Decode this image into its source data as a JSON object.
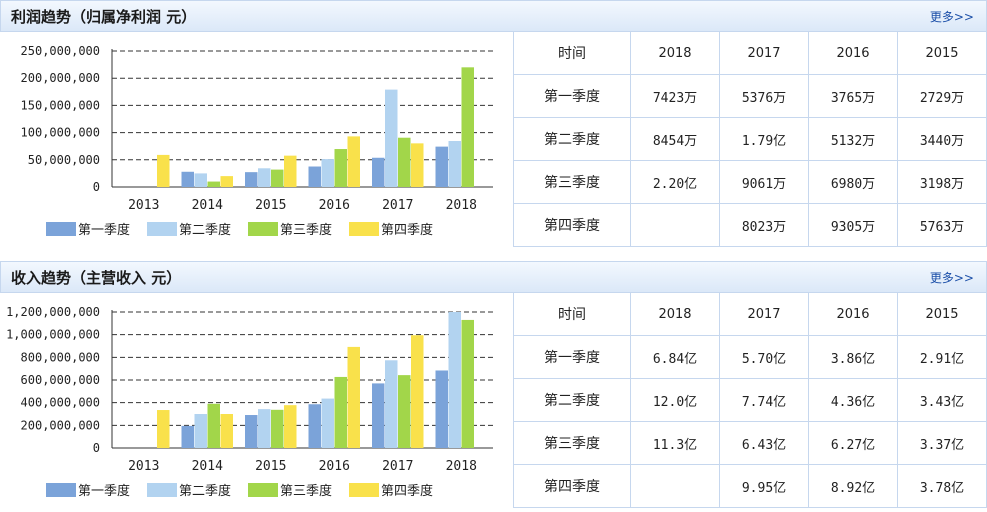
{
  "profit": {
    "title": "利润趋势（归属净利润 元）",
    "more_label": "更多>>",
    "table": {
      "header": [
        "时间",
        "2018",
        "2017",
        "2016",
        "2015"
      ],
      "rows": [
        [
          "第一季度",
          "7423万",
          "5376万",
          "3765万",
          "2729万"
        ],
        [
          "第二季度",
          "8454万",
          "1.79亿",
          "5132万",
          "3440万"
        ],
        [
          "第三季度",
          "2.20亿",
          "9061万",
          "6980万",
          "3198万"
        ],
        [
          "第四季度",
          "",
          "8023万",
          "9305万",
          "5763万"
        ]
      ]
    }
  },
  "revenue": {
    "title": "收入趋势（主营收入 元）",
    "more_label": "更多>>",
    "table": {
      "header": [
        "时间",
        "2018",
        "2017",
        "2016",
        "2015"
      ],
      "rows": [
        [
          "第一季度",
          "6.84亿",
          "5.70亿",
          "3.86亿",
          "2.91亿"
        ],
        [
          "第二季度",
          "12.0亿",
          "7.74亿",
          "4.36亿",
          "3.43亿"
        ],
        [
          "第三季度",
          "11.3亿",
          "6.43亿",
          "6.27亿",
          "3.37亿"
        ],
        [
          "第四季度",
          "",
          "9.95亿",
          "8.92亿",
          "3.78亿"
        ]
      ]
    }
  },
  "legend": [
    "第一季度",
    "第二季度",
    "第三季度",
    "第四季度"
  ],
  "colors": [
    "#7ba3d9",
    "#b2d3f0",
    "#a2d64a",
    "#f9e14b"
  ],
  "chart_data": [
    {
      "type": "bar",
      "categories": [
        "2013",
        "2014",
        "2015",
        "2016",
        "2017",
        "2018"
      ],
      "ylim": [
        0,
        250000000
      ],
      "yticks": [
        0,
        50000000,
        100000000,
        150000000,
        200000000,
        250000000
      ],
      "ytick_labels": [
        "0",
        "50,000,000",
        "100,000,000",
        "150,000,000",
        "200,000,000",
        "250,000,000"
      ],
      "grid": true,
      "legend": "bottom",
      "series": [
        {
          "name": "第一季度",
          "values": [
            null,
            28000000,
            27290000,
            37650000,
            53760000,
            74230000
          ]
        },
        {
          "name": "第二季度",
          "values": [
            null,
            25000000,
            34400000,
            51320000,
            179000000,
            84540000
          ]
        },
        {
          "name": "第三季度",
          "values": [
            null,
            10000000,
            31980000,
            69800000,
            90610000,
            220000000
          ]
        },
        {
          "name": "第四季度",
          "values": [
            59000000,
            20000000,
            57630000,
            93050000,
            80230000,
            null
          ]
        }
      ]
    },
    {
      "type": "bar",
      "categories": [
        "2013",
        "2014",
        "2015",
        "2016",
        "2017",
        "2018"
      ],
      "ylim": [
        0,
        1200000000
      ],
      "yticks": [
        0,
        200000000,
        400000000,
        600000000,
        800000000,
        1000000000,
        1200000000
      ],
      "ytick_labels": [
        "0",
        "200,000,000",
        "400,000,000",
        "600,000,000",
        "800,000,000",
        "1,000,000,000",
        "1,200,000,000"
      ],
      "grid": true,
      "legend": "bottom",
      "series": [
        {
          "name": "第一季度",
          "values": [
            null,
            195000000,
            291000000,
            386000000,
            570000000,
            684000000
          ]
        },
        {
          "name": "第二季度",
          "values": [
            null,
            300000000,
            343000000,
            436000000,
            774000000,
            1200000000
          ]
        },
        {
          "name": "第三季度",
          "values": [
            null,
            390000000,
            337000000,
            627000000,
            643000000,
            1130000000
          ]
        },
        {
          "name": "第四季度",
          "values": [
            335000000,
            300000000,
            378000000,
            892000000,
            995000000,
            null
          ]
        }
      ]
    }
  ]
}
